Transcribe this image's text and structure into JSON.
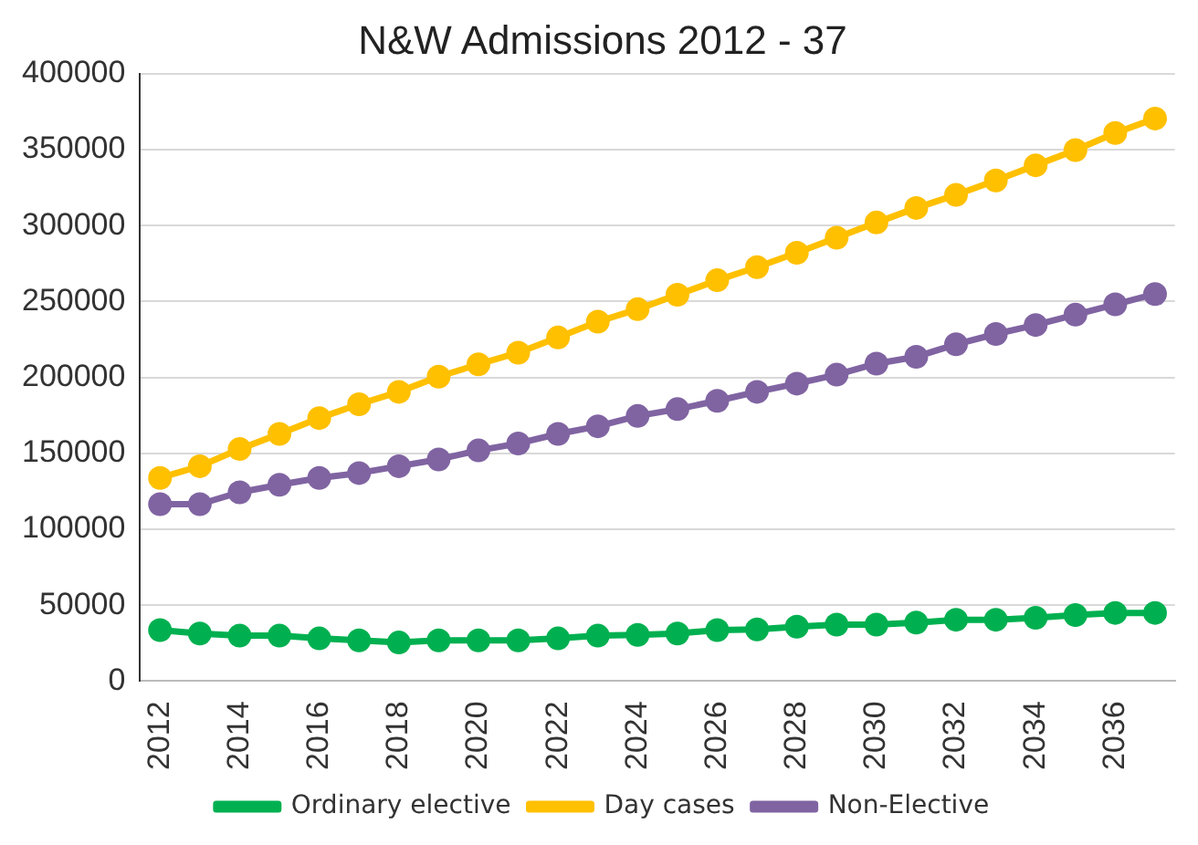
{
  "chart_data": {
    "type": "line",
    "title": "N&W Admissions 2012 - 37",
    "categories": [
      "2012",
      null,
      "2014",
      null,
      "2016",
      null,
      "2018",
      null,
      "2020",
      null,
      "2022",
      null,
      "2024",
      null,
      "2026",
      null,
      "2028",
      null,
      "2030",
      null,
      "2032",
      null,
      "2034",
      null,
      "2036",
      null
    ],
    "series": [
      {
        "name": "Ordinary elective",
        "color": "#00b050",
        "values": [
          33600,
          31300,
          29900,
          29900,
          28100,
          26800,
          25400,
          26800,
          26800,
          26800,
          28100,
          29900,
          30400,
          31300,
          33600,
          34000,
          35800,
          37200,
          37200,
          38500,
          40400,
          40400,
          41700,
          43500,
          44900,
          44900
        ]
      },
      {
        "name": "Day cases",
        "color": "#ffc000",
        "values": [
          133800,
          141500,
          152800,
          162800,
          173200,
          182300,
          190500,
          200500,
          208600,
          216300,
          226300,
          236700,
          244900,
          254400,
          264000,
          272600,
          282100,
          292000,
          302000,
          311600,
          320200,
          329700,
          339700,
          349700,
          361000,
          370500
        ]
      },
      {
        "name": "Non-Elective",
        "color": "#8064a2",
        "values": [
          116500,
          116500,
          124300,
          129300,
          133800,
          137000,
          141500,
          146000,
          151900,
          156500,
          162800,
          167800,
          174600,
          179100,
          184600,
          190500,
          195900,
          201800,
          209100,
          213600,
          221800,
          228600,
          234500,
          241300,
          248100,
          254900
        ]
      }
    ],
    "ylim": [
      0,
      400000
    ],
    "yticks": [
      0,
      50000,
      100000,
      150000,
      200000,
      250000,
      300000,
      350000,
      400000
    ],
    "grid": "y",
    "legend": "bottom",
    "marker": "circle",
    "line_style": "solid"
  }
}
